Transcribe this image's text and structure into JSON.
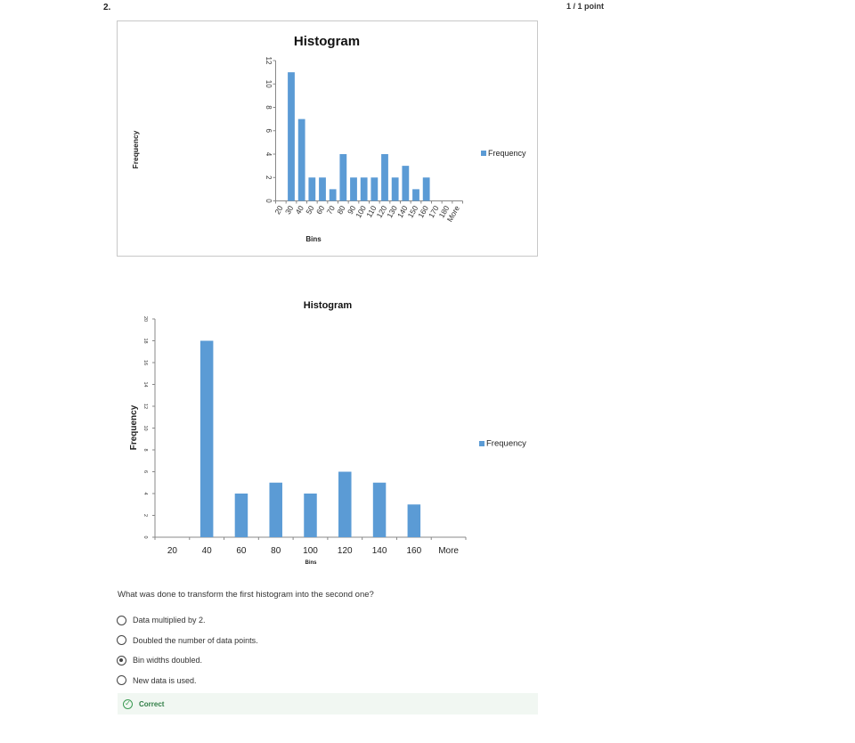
{
  "question": {
    "number": "2.",
    "score": "1 / 1 point",
    "text": "What was done to transform the first histogram into the second one?",
    "options": [
      {
        "label": "Data multiplied by 2.",
        "selected": false
      },
      {
        "label": "Doubled the number of data points.",
        "selected": false
      },
      {
        "label": "Bin widths doubled.",
        "selected": true
      },
      {
        "label": "New data is used.",
        "selected": false
      }
    ],
    "feedback": "Correct"
  },
  "colors": {
    "bar": "#5b9bd5",
    "axis": "#888888",
    "feedback_green": "#3a9a52"
  },
  "chart_data": [
    {
      "type": "bar",
      "title": "Histogram",
      "xlabel": "Bins",
      "ylabel": "Frequency",
      "categories": [
        "20",
        "30",
        "40",
        "50",
        "60",
        "70",
        "80",
        "90",
        "100",
        "110",
        "120",
        "130",
        "140",
        "150",
        "160",
        "170",
        "180",
        "More"
      ],
      "series": [
        {
          "name": "Frequency",
          "values": [
            0,
            11,
            7,
            2,
            2,
            1,
            4,
            2,
            2,
            2,
            4,
            2,
            3,
            1,
            2,
            0,
            0,
            0
          ]
        }
      ],
      "ylim": [
        0,
        12
      ],
      "yticks": [
        0,
        2,
        4,
        6,
        8,
        10,
        12
      ],
      "legend": "right",
      "grid": false
    },
    {
      "type": "bar",
      "title": "Histogram",
      "xlabel": "Bins",
      "ylabel": "Frequency",
      "categories": [
        "20",
        "40",
        "60",
        "80",
        "100",
        "120",
        "140",
        "160",
        "More"
      ],
      "series": [
        {
          "name": "Frequency",
          "values": [
            0,
            18,
            4,
            5,
            4,
            6,
            5,
            3,
            0
          ]
        }
      ],
      "ylim": [
        0,
        20
      ],
      "yticks": [
        0,
        2,
        4,
        6,
        8,
        10,
        12,
        14,
        16,
        18,
        20
      ],
      "legend": "right",
      "grid": false
    }
  ]
}
